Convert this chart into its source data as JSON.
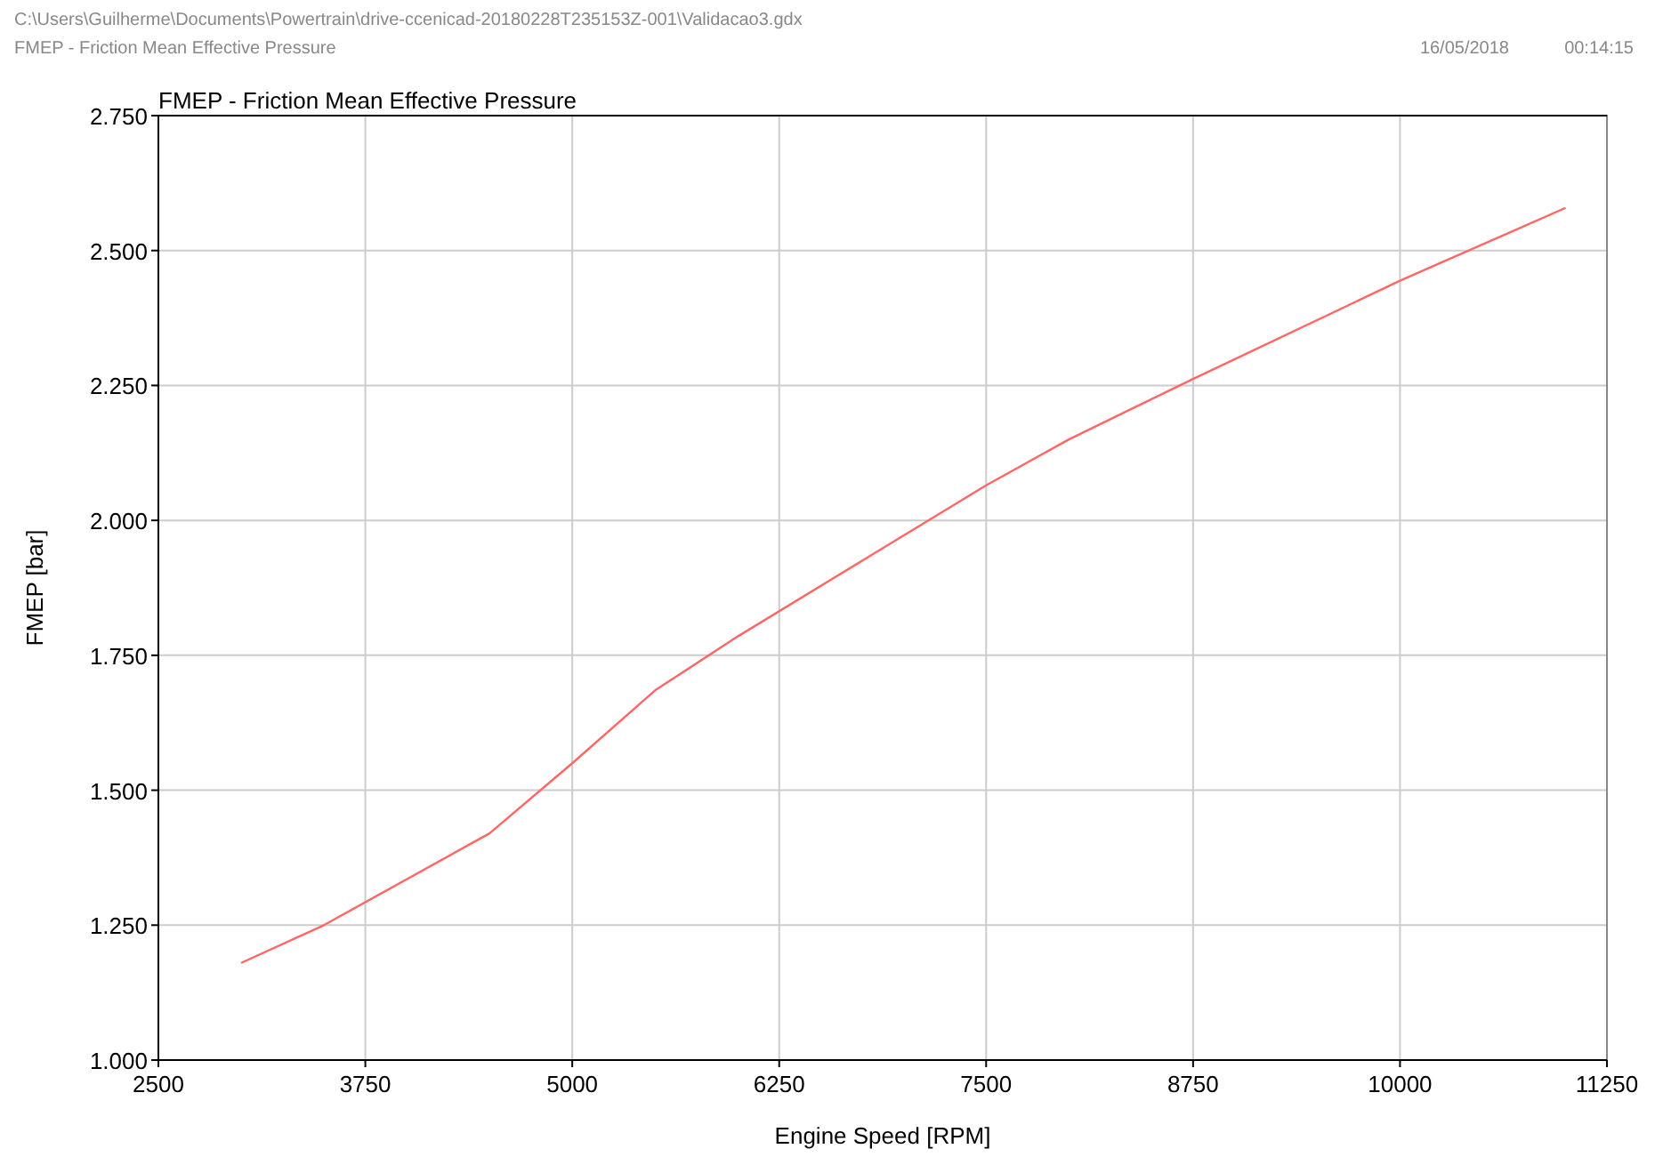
{
  "chart_data": {
    "type": "line",
    "title": "FMEP - Friction Mean Effective Pressure",
    "subtitle": "FMEP - Friction Mean Effective Pressure",
    "xlabel": "Engine Speed [RPM]",
    "ylabel": "FMEP [bar]",
    "annotations": [
      "C:\\Users\\Guilherme\\Documents\\Powertrain\\drive-ccenicad-20180228T235153Z-001\\Validacao3.gdx",
      "16/05/2018",
      "00:14:15"
    ],
    "x": [
      3000,
      3500,
      4500,
      5000,
      5500,
      6000,
      7500,
      8000,
      8750,
      10000,
      11000
    ],
    "series": [
      {
        "color": "#ff6666",
        "values": [
          1.18,
          1.25,
          1.42,
          1.55,
          1.685,
          1.785,
          2.065,
          2.15,
          2.262,
          2.444,
          2.579
        ]
      }
    ],
    "xlim": [
      2500,
      11250
    ],
    "xticks": [
      2500,
      3750,
      5000,
      6250,
      7500,
      8750,
      10000,
      11250
    ],
    "ylim": [
      1,
      2.75
    ],
    "yticks": [
      {
        "value": 1,
        "label": "1.000"
      },
      {
        "value": 1.25,
        "label": "1.250"
      },
      {
        "value": 1.5,
        "label": "1.500"
      },
      {
        "value": 1.75,
        "label": "1.750"
      },
      {
        "value": 2,
        "label": "2.000"
      },
      {
        "value": 2.25,
        "label": "2.250"
      },
      {
        "value": 2.5,
        "label": "2.500"
      },
      {
        "value": 2.75,
        "label": "2.750"
      }
    ],
    "grid": true,
    "marker": "none",
    "line_style": "solid"
  }
}
